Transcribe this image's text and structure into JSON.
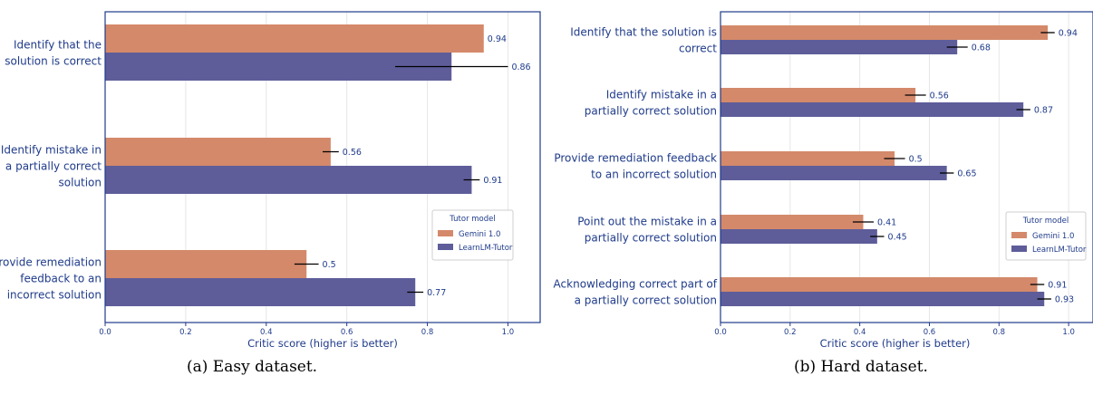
{
  "colors": {
    "gemini": "#d4896a",
    "learnlm": "#5e5d9a",
    "frame": "#1f3b8a",
    "text": "#1f3b8a",
    "grid": "#e6e6e6",
    "errbar": "#000000"
  },
  "chart_data": [
    {
      "type": "bar",
      "orientation": "horizontal",
      "caption": "(a) Easy dataset.",
      "xlabel": "Critic score (higher is better)",
      "ylabel": "",
      "xlim": [
        0,
        1.08
      ],
      "xticks": [
        "0.0",
        "0.2",
        "0.4",
        "0.6",
        "0.8",
        "1.0"
      ],
      "xtick_values": [
        0,
        0.2,
        0.4,
        0.6,
        0.8,
        1.0
      ],
      "grid": true,
      "legend": {
        "title": "Tutor model",
        "placement": "right",
        "entries": [
          "Gemini 1.0",
          "LearnLM-Tutor"
        ]
      },
      "categories": [
        [
          "Identify that the",
          "solution is correct"
        ],
        [
          "Identify mistake in",
          "a partially correct",
          "solution"
        ],
        [
          "Provide remediation",
          "feedback to an",
          "incorrect solution"
        ]
      ],
      "series": [
        {
          "name": "Gemini 1.0",
          "values": [
            0.94,
            0.56,
            0.5
          ],
          "labels": [
            "0.94",
            "0.56",
            "0.5"
          ],
          "err": [
            0.0,
            0.02,
            0.03
          ]
        },
        {
          "name": "LearnLM-Tutor",
          "values": [
            0.86,
            0.91,
            0.77
          ],
          "labels": [
            "0.86",
            "0.91",
            "0.77"
          ],
          "err": [
            0.14,
            0.02,
            0.02
          ]
        }
      ]
    },
    {
      "type": "bar",
      "orientation": "horizontal",
      "caption": "(b) Hard dataset.",
      "xlabel": "Critic score (higher is better)",
      "ylabel": "",
      "xlim": [
        0,
        1.07
      ],
      "xticks": [
        "0.0",
        "0.2",
        "0.4",
        "0.6",
        "0.8",
        "1.0"
      ],
      "xtick_values": [
        0,
        0.2,
        0.4,
        0.6,
        0.8,
        1.0
      ],
      "grid": true,
      "legend": {
        "title": "Tutor model",
        "placement": "lower right",
        "entries": [
          "Gemini 1.0",
          "LearnLM-Tutor"
        ]
      },
      "categories": [
        [
          "Identify that the solution is",
          "correct"
        ],
        [
          "Identify mistake in a",
          "partially correct solution"
        ],
        [
          "Provide remediation feedback",
          "to an incorrect solution"
        ],
        [
          "Point out the mistake in a",
          "partially correct solution"
        ],
        [
          "Acknowledging correct part of",
          "a partially correct solution"
        ]
      ],
      "series": [
        {
          "name": "Gemini 1.0",
          "values": [
            0.94,
            0.56,
            0.5,
            0.41,
            0.91
          ],
          "labels": [
            "0.94",
            "0.56",
            "0.5",
            "0.41",
            "0.91"
          ],
          "err": [
            0.02,
            0.03,
            0.03,
            0.03,
            0.02
          ]
        },
        {
          "name": "LearnLM-Tutor",
          "values": [
            0.68,
            0.87,
            0.65,
            0.45,
            0.93
          ],
          "labels": [
            "0.68",
            "0.87",
            "0.65",
            "0.45",
            "0.93"
          ],
          "err": [
            0.03,
            0.02,
            0.02,
            0.02,
            0.02
          ]
        }
      ]
    }
  ]
}
